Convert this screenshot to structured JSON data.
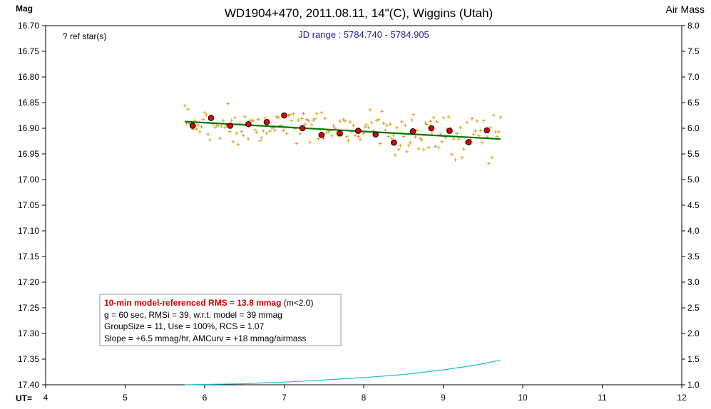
{
  "chart_data": {
    "type": "scatter",
    "title": "WD1904+470, 2011.08.11, 14\"(C), Wiggins (Utah)",
    "ylabel": "Mag",
    "y2label": "Air Mass",
    "xlabel": "UT=",
    "xlim": [
      4,
      12
    ],
    "ylim": [
      16.7,
      17.4
    ],
    "y2lim": [
      1.0,
      8.0
    ],
    "y_inverted": true,
    "x_ticks": [
      "4",
      "5",
      "6",
      "7",
      "8",
      "9",
      "10",
      "11",
      "12"
    ],
    "y_ticks": [
      "16.70",
      "16.75",
      "16.80",
      "16.85",
      "16.90",
      "16.95",
      "17.00",
      "17.05",
      "17.10",
      "17.15",
      "17.20",
      "17.25",
      "17.30",
      "17.35",
      "17.40"
    ],
    "y2_ticks": [
      "8.0",
      "7.5",
      "7.0",
      "6.5",
      "6.0",
      "5.5",
      "5.0",
      "4.5",
      "4.0",
      "3.5",
      "3.0",
      "2.5",
      "2.0",
      "1.5",
      "1.0"
    ],
    "ref_star_label": "? ref star(s)",
    "jd_range_label": "JD range : 5784.740 - 5784.905",
    "colors": {
      "raw": "#d4a020",
      "binned": "#dd0000",
      "trend": "#007700",
      "airmass": "#20b8d0",
      "jd": "#222299",
      "rms": "#cc0000"
    },
    "raw_points_seed": 1904,
    "raw_points_count": 190,
    "binned": [
      {
        "x": 5.85,
        "y": 16.895
      },
      {
        "x": 6.08,
        "y": 16.88
      },
      {
        "x": 6.32,
        "y": 16.895
      },
      {
        "x": 6.55,
        "y": 16.892
      },
      {
        "x": 6.78,
        "y": 16.888
      },
      {
        "x": 7.0,
        "y": 16.875
      },
      {
        "x": 7.23,
        "y": 16.9
      },
      {
        "x": 7.47,
        "y": 16.913
      },
      {
        "x": 7.7,
        "y": 16.91
      },
      {
        "x": 7.93,
        "y": 16.905
      },
      {
        "x": 8.15,
        "y": 16.912
      },
      {
        "x": 8.38,
        "y": 16.928
      },
      {
        "x": 8.62,
        "y": 16.906
      },
      {
        "x": 8.85,
        "y": 16.9
      },
      {
        "x": 9.08,
        "y": 16.905
      },
      {
        "x": 9.32,
        "y": 16.927
      },
      {
        "x": 9.55,
        "y": 16.904
      }
    ],
    "trend": [
      {
        "x": 5.75,
        "y": 16.887
      },
      {
        "x": 9.72,
        "y": 16.921
      }
    ],
    "airmass": [
      {
        "x": 5.75,
        "y": 1.0
      },
      {
        "x": 6.5,
        "y": 1.02
      },
      {
        "x": 7.25,
        "y": 1.07
      },
      {
        "x": 8.0,
        "y": 1.14
      },
      {
        "x": 8.5,
        "y": 1.2
      },
      {
        "x": 9.0,
        "y": 1.29
      },
      {
        "x": 9.4,
        "y": 1.38
      },
      {
        "x": 9.72,
        "y": 1.48
      }
    ],
    "info_box": {
      "line1_bold": "10-min model-referenced RMS = 13.8 mmag",
      "line1_rest": " (m<2.0)",
      "line2": "g = 60 sec, RMSi = 39, w.r.t. model = 39 mmag",
      "line3": "GroupSize = 11, Use = 100%, RCS = 1.07",
      "line4": "Slope = +6.5 mmag/hr, AMCurv = +18 mmag/airmass"
    }
  }
}
